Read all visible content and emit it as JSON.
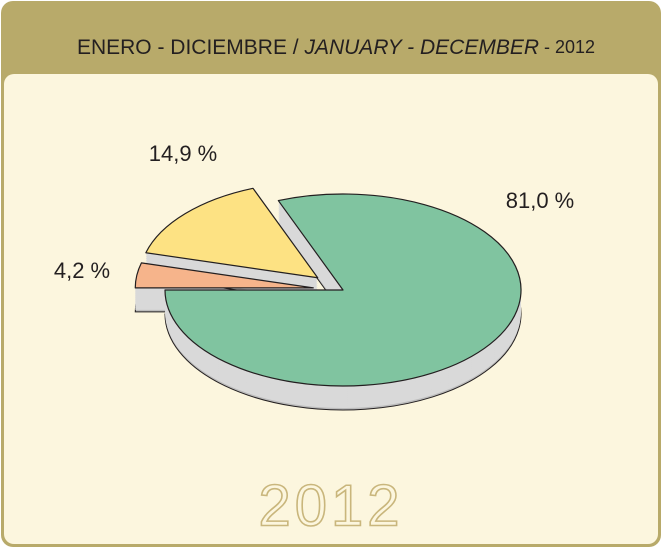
{
  "chart_data": {
    "type": "pie",
    "title": [
      "ENERO - DICIEMBRE / ",
      "JANUARY - DECEMBER",
      " - 2012"
    ],
    "annotation": "2012",
    "series": [
      {
        "values": [
          81.0,
          4.2,
          14.9
        ],
        "value_labels": [
          "81,0 %",
          "4,2 %",
          "14,9 %"
        ],
        "colors": [
          "#80c4a0",
          "#f6b48b",
          "#fde283"
        ]
      }
    ]
  }
}
